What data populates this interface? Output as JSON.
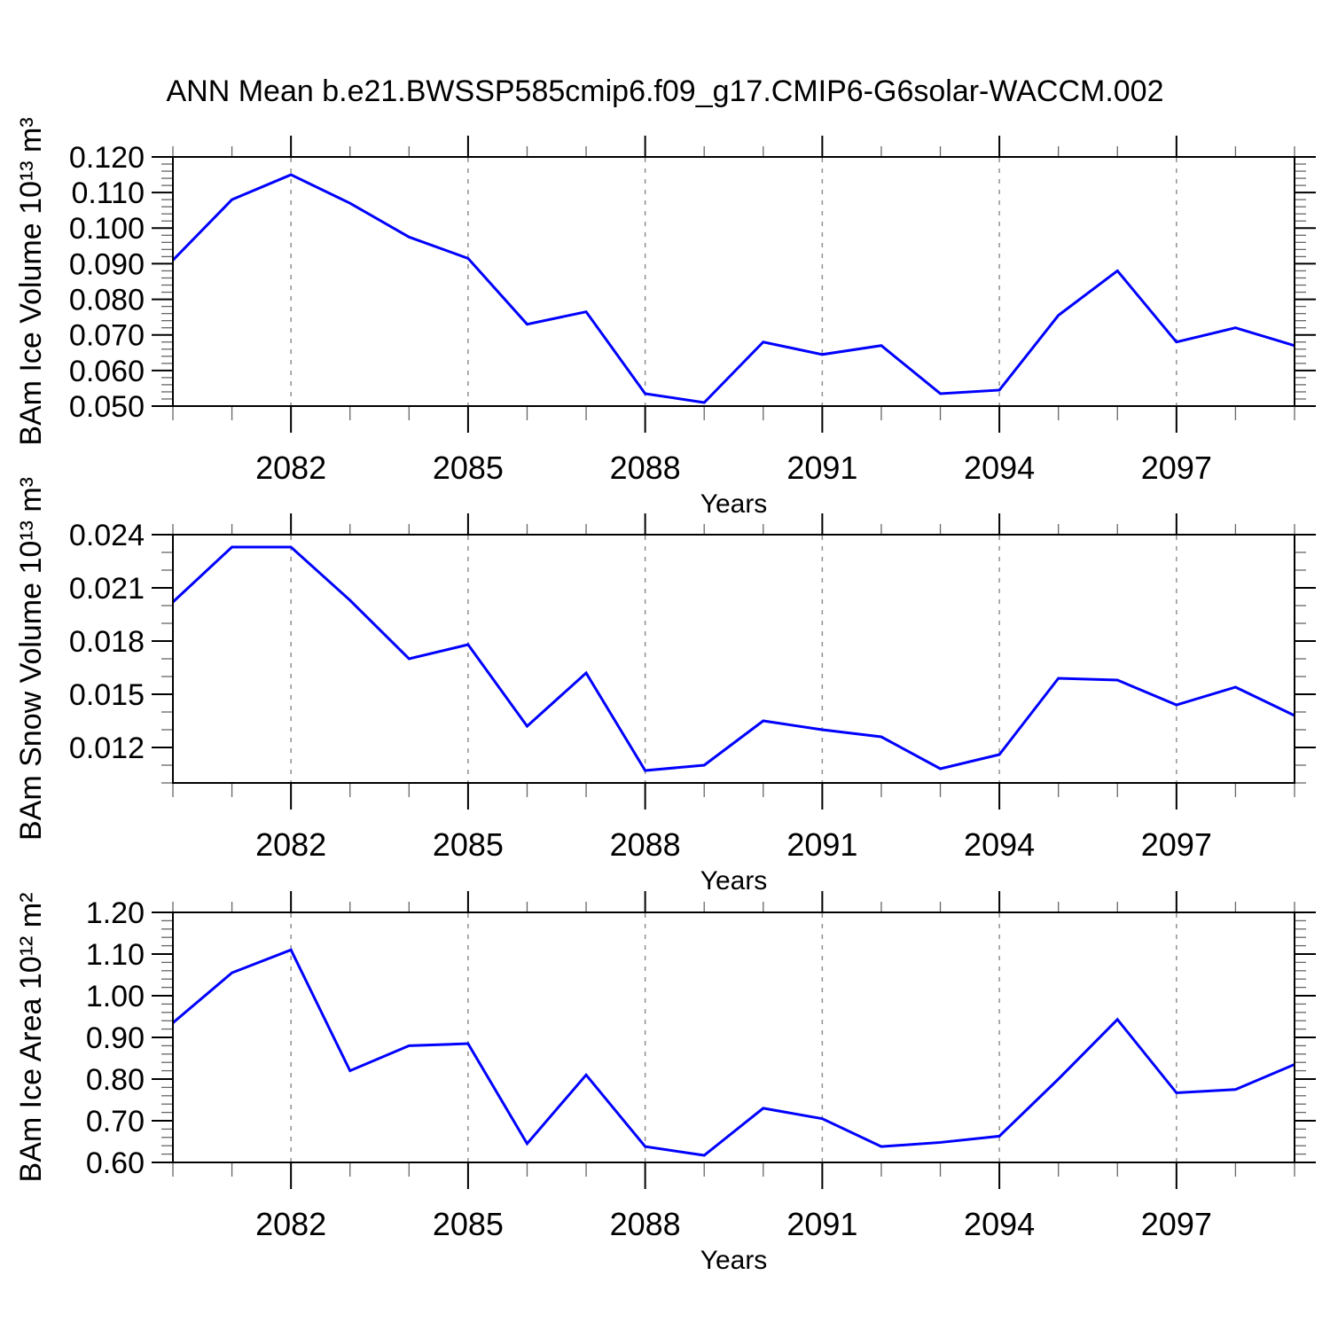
{
  "title": "ANN Mean b.e21.BWSSP585cmip6.f09_g17.CMIP6-G6solar-WACCM.002",
  "chart_data": {
    "type": "line",
    "title": "ANN Mean b.e21.BWSSP585cmip6.f09_g17.CMIP6-G6solar-WACCM.002",
    "x_label": "Years",
    "x_range": [
      2080,
      2099
    ],
    "x": [
      2080,
      2081,
      2082,
      2083,
      2084,
      2085,
      2086,
      2087,
      2088,
      2089,
      2090,
      2091,
      2092,
      2093,
      2094,
      2095,
      2096,
      2097,
      2098,
      2099
    ],
    "x_major_ticks": [
      2082,
      2085,
      2088,
      2091,
      2094,
      2097
    ],
    "x_major_tick_labels": [
      "2082",
      "2085",
      "2088",
      "2091",
      "2094",
      "2097"
    ],
    "grid": "vertical dashed gray gridlines at major x ticks",
    "legend": "none",
    "line_color": "#0000ff",
    "panels": [
      {
        "name": "ice-volume",
        "ylabel": "BAm Ice Volume 10¹³ m³",
        "ylim": [
          0.05,
          0.12
        ],
        "y_major_ticks": [
          0.05,
          0.06,
          0.07,
          0.08,
          0.09,
          0.1,
          0.11,
          0.12
        ],
        "y_major_tick_labels": [
          "0.050",
          "0.060",
          "0.070",
          "0.080",
          "0.090",
          "0.100",
          "0.110",
          "0.120"
        ],
        "y_minor_step": 0.002,
        "values": [
          0.091,
          0.108,
          0.115,
          0.107,
          0.0975,
          0.0915,
          0.073,
          0.0765,
          0.0535,
          0.051,
          0.068,
          0.0645,
          0.067,
          0.0535,
          0.0545,
          0.0755,
          0.088,
          0.068,
          0.072,
          0.067
        ]
      },
      {
        "name": "snow-volume",
        "ylabel": "BAm Snow Volume 10¹³ m³",
        "ylim": [
          0.01,
          0.024
        ],
        "y_major_ticks": [
          0.012,
          0.015,
          0.018,
          0.021,
          0.024
        ],
        "y_major_tick_labels": [
          "0.012",
          "0.015",
          "0.018",
          "0.021",
          "0.024"
        ],
        "y_minor_step": 0.001,
        "values": [
          0.0202,
          0.0233,
          0.0233,
          0.0203,
          0.017,
          0.0178,
          0.0132,
          0.0162,
          0.0107,
          0.011,
          0.0135,
          0.013,
          0.0126,
          0.0108,
          0.0116,
          0.0159,
          0.0158,
          0.0144,
          0.0154,
          0.0138
        ]
      },
      {
        "name": "ice-area",
        "ylabel": "BAm Ice Area 10¹² m²",
        "ylim": [
          0.6,
          1.2
        ],
        "y_major_ticks": [
          0.6,
          0.7,
          0.8,
          0.9,
          1.0,
          1.1,
          1.2
        ],
        "y_major_tick_labels": [
          "0.60",
          "0.70",
          "0.80",
          "0.90",
          "1.00",
          "1.10",
          "1.20"
        ],
        "y_minor_step": 0.02,
        "values": [
          0.935,
          1.055,
          1.11,
          0.82,
          0.88,
          0.885,
          0.645,
          0.81,
          0.638,
          0.617,
          0.73,
          0.705,
          0.638,
          0.648,
          0.663,
          0.8,
          0.943,
          0.767,
          0.775,
          0.835
        ]
      }
    ]
  }
}
